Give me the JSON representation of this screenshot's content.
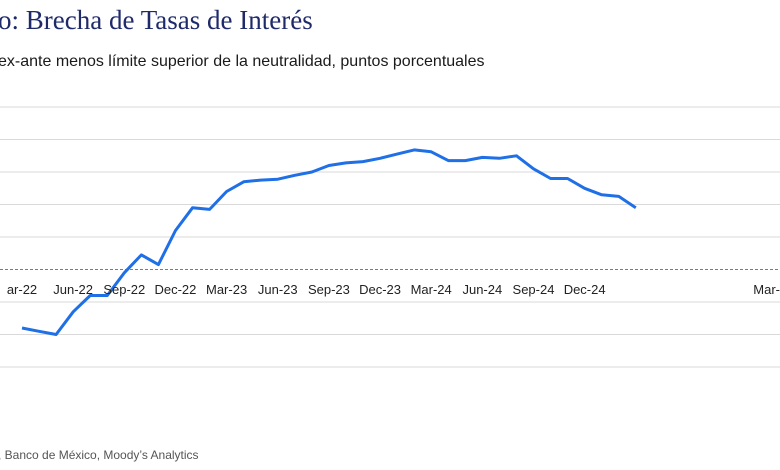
{
  "header": {
    "title": "o: Brecha de Tasas de Interés",
    "subtitle": "ex-ante menos límite superior de la neutralidad, puntos porcentuales"
  },
  "footer": {
    "source": ", Banco de México, Moody’s Analytics"
  },
  "colors": {
    "line": "#1f6fe6",
    "grid": "#d9d9d9",
    "zero_line": "#d9534f",
    "title": "#1f2a6b"
  },
  "chart_data": {
    "type": "line",
    "title": "o: Brecha de Tasas de Interés",
    "xlabel": "",
    "ylabel": "",
    "grid": true,
    "legend": "none",
    "tick_labels": [
      "ar-22",
      "Jun-22",
      "Sep-22",
      "Dec-22",
      "Mar-23",
      "Jun-23",
      "Sep-23",
      "Dec-23",
      "Mar-24",
      "Jun-24",
      "Sep-24",
      "Dec-24",
      "Mar-"
    ],
    "tick_positions": [
      0,
      3,
      6,
      9,
      12,
      15,
      18,
      21,
      24,
      27,
      30,
      33,
      36
    ],
    "ylim": [
      -3,
      5
    ],
    "reference_line": 0,
    "series": [
      {
        "values": [
          -1.8,
          -1.9,
          -2.0,
          -1.3,
          -0.8,
          -0.8,
          -0.1,
          0.45,
          0.15,
          1.2,
          1.9,
          1.85,
          2.4,
          2.7,
          2.75,
          2.78,
          2.9,
          3.0,
          3.2,
          3.28,
          3.32,
          3.42,
          3.55,
          3.68,
          3.62,
          3.35,
          3.35,
          3.45,
          3.42,
          3.5,
          3.1,
          2.8,
          2.8,
          2.5,
          2.3,
          2.25,
          1.9
        ]
      }
    ]
  }
}
